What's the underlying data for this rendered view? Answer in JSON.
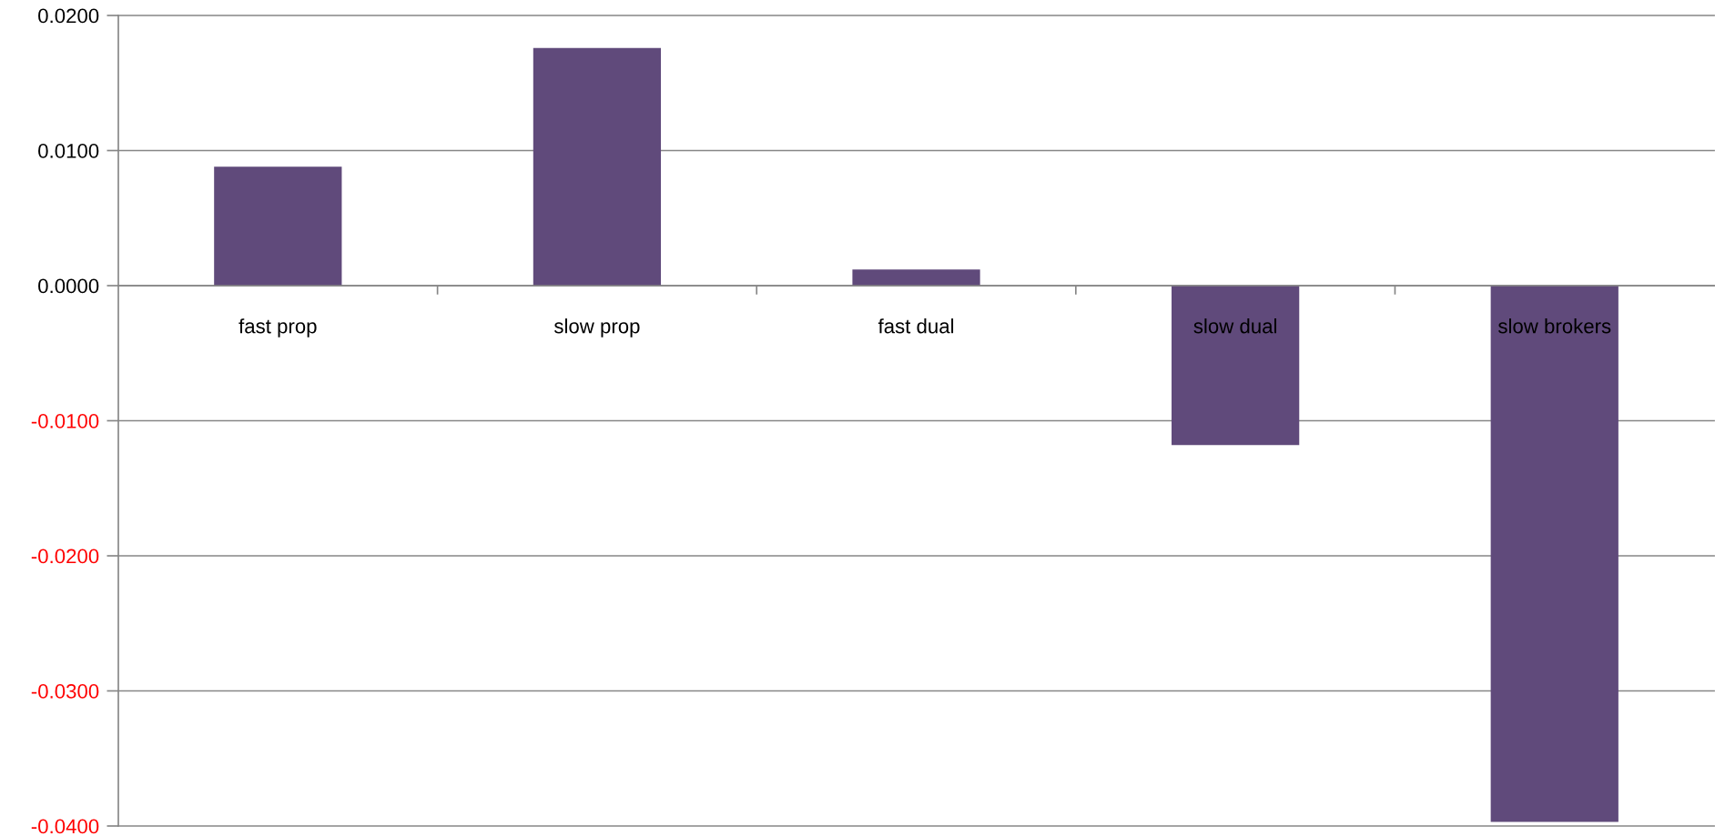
{
  "chart_data": {
    "type": "bar",
    "categories": [
      "fast prop",
      "slow prop",
      "fast dual",
      "slow dual",
      "slow brokers"
    ],
    "values": [
      0.0088,
      0.0176,
      0.0012,
      -0.0118,
      -0.0397
    ],
    "color": "#604a7b",
    "ylim": [
      -0.04,
      0.02
    ],
    "yticks": [
      {
        "value": 0.02,
        "label": "0.0200"
      },
      {
        "value": 0.01,
        "label": "0.0100"
      },
      {
        "value": 0,
        "label": "0.0000"
      },
      {
        "value": -0.01,
        "label": "-0.0100"
      },
      {
        "value": -0.02,
        "label": "-0.0200"
      },
      {
        "value": -0.03,
        "label": "-0.0300"
      },
      {
        "value": -0.04,
        "label": "-0.0400"
      }
    ],
    "grid": "y"
  }
}
